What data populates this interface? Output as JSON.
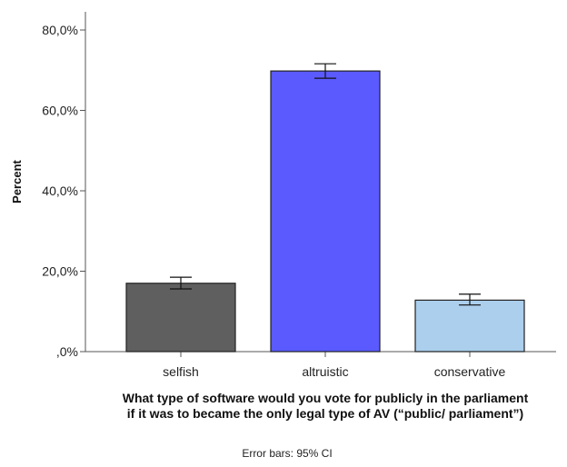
{
  "chart_data": {
    "type": "bar",
    "categories": [
      "selfish",
      "altruistic",
      "conservative"
    ],
    "values": [
      17.0,
      69.8,
      12.8
    ],
    "error_bars": {
      "lower": [
        15.6,
        68.0,
        11.6
      ],
      "upper": [
        18.5,
        71.6,
        14.3
      ]
    },
    "colors": [
      "#5f5f5f",
      "#5a5aff",
      "#abcfed"
    ],
    "title": "",
    "ylabel": "Percent",
    "xlabel_lines": [
      "What type of software would you vote for publicly in the parliament",
      "if it was to became the only legal type of AV (“public/ parliament”)"
    ],
    "ylim": [
      0,
      80
    ],
    "yticks": [
      0,
      20,
      40,
      60,
      80
    ],
    "ytick_labels": [
      ",0%",
      "20,0%",
      "40,0%",
      "60,0%",
      "80,0%"
    ],
    "grid": false,
    "footnote": "Error bars: 95% CI"
  }
}
